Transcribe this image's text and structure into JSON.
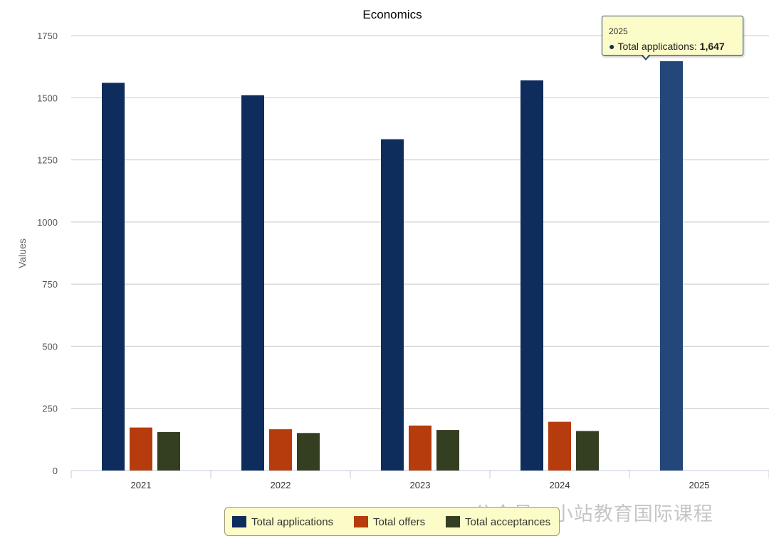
{
  "chart_data": {
    "type": "bar",
    "title": "Economics",
    "xlabel": "",
    "ylabel": "Values",
    "ylim": [
      0,
      1750
    ],
    "yticks": [
      0,
      250,
      500,
      750,
      1000,
      1250,
      1500,
      1750
    ],
    "grid": true,
    "legend_position": "bottom-center",
    "categories": [
      "2021",
      "2022",
      "2023",
      "2024",
      "2025"
    ],
    "series": [
      {
        "name": "Total applications",
        "color": "#0e2c5c",
        "values": [
          1560,
          1510,
          1333,
          1570,
          1647
        ]
      },
      {
        "name": "Total offers",
        "color": "#b63b0d",
        "values": [
          173,
          166,
          181,
          196,
          null
        ]
      },
      {
        "name": "Total acceptances",
        "color": "#343f22",
        "values": [
          155,
          151,
          163,
          159,
          null
        ]
      }
    ],
    "highlight": {
      "series": 0,
      "index": 4,
      "color": "#24477a"
    }
  },
  "tooltip": {
    "year": "2025",
    "bullet": "●",
    "series_label": "Total applications:",
    "value": "1,647"
  },
  "watermark": {
    "text": "公众号 · 小站教育国际课程"
  }
}
